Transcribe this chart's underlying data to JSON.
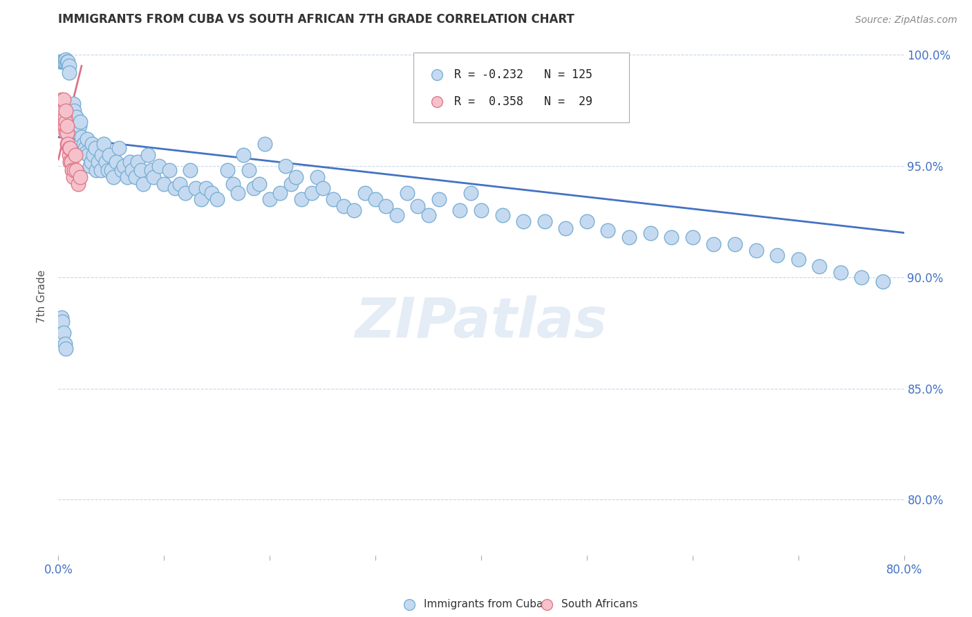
{
  "title": "IMMIGRANTS FROM CUBA VS SOUTH AFRICAN 7TH GRADE CORRELATION CHART",
  "source": "Source: ZipAtlas.com",
  "ylabel": "7th Grade",
  "yticks": [
    0.8,
    0.85,
    0.9,
    0.95,
    1.0
  ],
  "ytick_labels": [
    "80.0%",
    "85.0%",
    "90.0%",
    "95.0%",
    "100.0%"
  ],
  "legend_blue_r": "-0.232",
  "legend_blue_n": "125",
  "legend_pink_r": "0.358",
  "legend_pink_n": "29",
  "legend_blue_label": "Immigrants from Cuba",
  "legend_pink_label": "South Africans",
  "blue_color": "#c5daf0",
  "blue_edge": "#7bafd4",
  "pink_color": "#f5c2cc",
  "pink_edge": "#e07b8a",
  "blue_line_color": "#4472c4",
  "pink_line_color": "#d9738a",
  "watermark": "ZIPatlas",
  "blue_x": [
    0.002,
    0.003,
    0.004,
    0.005,
    0.006,
    0.007,
    0.008,
    0.009,
    0.01,
    0.01,
    0.011,
    0.012,
    0.013,
    0.014,
    0.015,
    0.015,
    0.016,
    0.017,
    0.018,
    0.019,
    0.02,
    0.021,
    0.022,
    0.023,
    0.024,
    0.025,
    0.026,
    0.027,
    0.028,
    0.03,
    0.031,
    0.032,
    0.033,
    0.035,
    0.036,
    0.038,
    0.04,
    0.041,
    0.043,
    0.045,
    0.047,
    0.048,
    0.05,
    0.052,
    0.055,
    0.057,
    0.06,
    0.062,
    0.065,
    0.068,
    0.07,
    0.073,
    0.075,
    0.078,
    0.08,
    0.085,
    0.088,
    0.09,
    0.095,
    0.1,
    0.105,
    0.11,
    0.115,
    0.12,
    0.125,
    0.13,
    0.135,
    0.14,
    0.145,
    0.15,
    0.16,
    0.165,
    0.17,
    0.175,
    0.18,
    0.185,
    0.19,
    0.195,
    0.2,
    0.21,
    0.215,
    0.22,
    0.225,
    0.23,
    0.24,
    0.245,
    0.25,
    0.26,
    0.27,
    0.28,
    0.29,
    0.3,
    0.31,
    0.32,
    0.33,
    0.34,
    0.35,
    0.36,
    0.38,
    0.39,
    0.4,
    0.42,
    0.44,
    0.46,
    0.48,
    0.5,
    0.52,
    0.54,
    0.56,
    0.58,
    0.6,
    0.62,
    0.64,
    0.66,
    0.68,
    0.7,
    0.72,
    0.74,
    0.76,
    0.78,
    0.003,
    0.004,
    0.005,
    0.006,
    0.007
  ],
  "blue_y": [
    0.997,
    0.997,
    0.997,
    0.997,
    0.997,
    0.998,
    0.997,
    0.997,
    0.995,
    0.992,
    0.975,
    0.972,
    0.975,
    0.978,
    0.975,
    0.971,
    0.97,
    0.972,
    0.968,
    0.965,
    0.968,
    0.97,
    0.963,
    0.958,
    0.96,
    0.958,
    0.956,
    0.962,
    0.955,
    0.95,
    0.952,
    0.96,
    0.955,
    0.958,
    0.948,
    0.952,
    0.948,
    0.955,
    0.96,
    0.952,
    0.948,
    0.955,
    0.948,
    0.945,
    0.952,
    0.958,
    0.948,
    0.95,
    0.945,
    0.952,
    0.948,
    0.945,
    0.952,
    0.948,
    0.942,
    0.955,
    0.948,
    0.945,
    0.95,
    0.942,
    0.948,
    0.94,
    0.942,
    0.938,
    0.948,
    0.94,
    0.935,
    0.94,
    0.938,
    0.935,
    0.948,
    0.942,
    0.938,
    0.955,
    0.948,
    0.94,
    0.942,
    0.96,
    0.935,
    0.938,
    0.95,
    0.942,
    0.945,
    0.935,
    0.938,
    0.945,
    0.94,
    0.935,
    0.932,
    0.93,
    0.938,
    0.935,
    0.932,
    0.928,
    0.938,
    0.932,
    0.928,
    0.935,
    0.93,
    0.938,
    0.93,
    0.928,
    0.925,
    0.925,
    0.922,
    0.925,
    0.921,
    0.918,
    0.92,
    0.918,
    0.918,
    0.915,
    0.915,
    0.912,
    0.91,
    0.908,
    0.905,
    0.902,
    0.9,
    0.898,
    0.882,
    0.88,
    0.875,
    0.87,
    0.868
  ],
  "pink_x": [
    0.002,
    0.003,
    0.003,
    0.004,
    0.004,
    0.005,
    0.005,
    0.005,
    0.006,
    0.006,
    0.007,
    0.007,
    0.007,
    0.008,
    0.008,
    0.008,
    0.009,
    0.01,
    0.01,
    0.011,
    0.011,
    0.012,
    0.013,
    0.014,
    0.015,
    0.016,
    0.017,
    0.019,
    0.021
  ],
  "pink_y": [
    0.97,
    0.98,
    0.975,
    0.97,
    0.975,
    0.975,
    0.98,
    0.968,
    0.968,
    0.972,
    0.965,
    0.97,
    0.975,
    0.96,
    0.965,
    0.968,
    0.96,
    0.955,
    0.958,
    0.952,
    0.958,
    0.952,
    0.948,
    0.945,
    0.948,
    0.955,
    0.948,
    0.942,
    0.945
  ],
  "blue_trend_x": [
    0.0,
    0.8
  ],
  "blue_trend_y": [
    0.963,
    0.92
  ],
  "pink_trend_x": [
    0.0,
    0.022
  ],
  "pink_trend_y": [
    0.953,
    0.995
  ],
  "xlim": [
    0.0,
    0.8
  ],
  "ylim": [
    0.775,
    1.008
  ],
  "xtick_positions": [
    0.0,
    0.1,
    0.2,
    0.3,
    0.4,
    0.5,
    0.6,
    0.7,
    0.8
  ],
  "xtick_labels_show": [
    "0.0%",
    "",
    "",
    "",
    "",
    "",
    "",
    "",
    "80.0%"
  ]
}
